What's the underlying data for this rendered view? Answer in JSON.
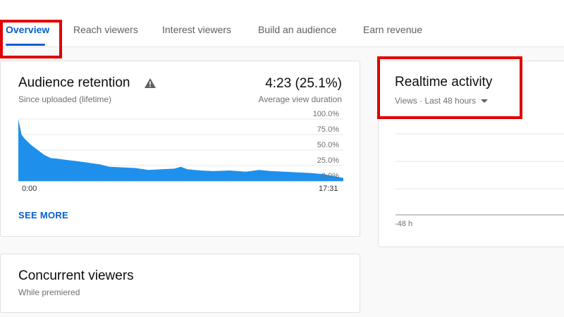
{
  "tabs": [
    {
      "label": "Overview",
      "active": true
    },
    {
      "label": "Reach viewers",
      "active": false
    },
    {
      "label": "Interest viewers",
      "active": false
    },
    {
      "label": "Build an audience",
      "active": false
    },
    {
      "label": "Earn revenue",
      "active": false
    }
  ],
  "retention": {
    "title": "Audience retention",
    "subtitle": "Since uploaded (lifetime)",
    "value": "4:23 (25.1%)",
    "value_label": "Average view duration",
    "see_more": "SEE MORE",
    "warning_icon": "warning-icon"
  },
  "realtime": {
    "title": "Realtime activity",
    "subtitle": "Views · Last 48 hours",
    "x_start_label": "-48 h"
  },
  "concurrent": {
    "title": "Concurrent viewers",
    "subtitle": "While premiered"
  },
  "colors": {
    "accent": "#065fd4",
    "area_fill": "#1e90ec",
    "highlight": "#e00000"
  },
  "chart_data": [
    {
      "type": "area",
      "title": "Audience retention",
      "x_labels": [
        "0:00",
        "17:31"
      ],
      "y_tick_labels": [
        "100.0%",
        "75.0%",
        "50.0%",
        "25.0%",
        "0.0%"
      ],
      "ylim": [
        0,
        100
      ],
      "y_unit": "%",
      "x": [
        0,
        0.01,
        0.02,
        0.04,
        0.06,
        0.08,
        0.1,
        0.12,
        0.15,
        0.18,
        0.21,
        0.25,
        0.28,
        0.32,
        0.36,
        0.4,
        0.44,
        0.48,
        0.5,
        0.52,
        0.56,
        0.6,
        0.65,
        0.7,
        0.74,
        0.78,
        0.82,
        0.86,
        0.9,
        0.94,
        0.97,
        1.0
      ],
      "values": [
        100,
        75,
        68,
        58,
        50,
        42,
        37,
        36,
        34,
        32,
        30,
        27,
        23,
        22,
        21,
        18,
        19,
        20,
        23,
        19,
        17,
        16,
        17,
        15,
        18,
        16,
        15,
        14,
        13,
        11,
        8,
        5
      ],
      "grid": true
    },
    {
      "type": "line",
      "title": "Realtime activity",
      "x_labels": [
        "-48 h"
      ],
      "values": [],
      "grid": true
    }
  ]
}
